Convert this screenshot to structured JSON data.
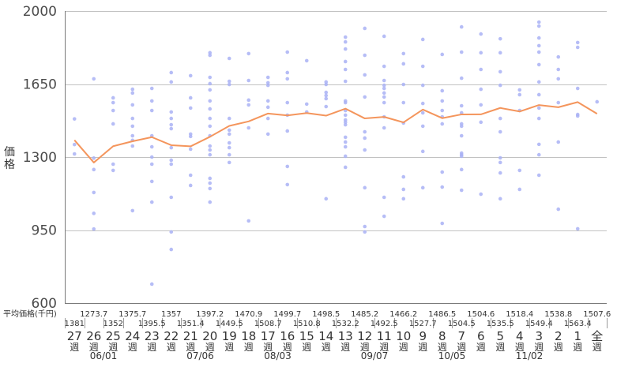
{
  "chart_data": {
    "type": "scatter",
    "categories": [
      "27週",
      "26週",
      "25週",
      "24週",
      "23週",
      "22週",
      "21週",
      "20週",
      "19週",
      "18週",
      "17週",
      "16週",
      "15週",
      "14週",
      "13週",
      "12週",
      "11週",
      "10週",
      "9週",
      "8週",
      "7週",
      "6週",
      "5週",
      "4週",
      "3週",
      "2週",
      "1週",
      "全週"
    ],
    "series": [
      {
        "type": "scatter",
        "values": [
          [
            1483,
            1360,
            1315
          ],
          [
            1675,
            1295,
            1240,
            1130,
            1030,
            955
          ],
          [
            1584,
            1561,
            1523,
            1459,
            1266,
            1236
          ],
          [
            1625,
            1607,
            1550,
            1485,
            1448,
            1402,
            1380,
            1353,
            1043
          ],
          [
            1629,
            1569,
            1523,
            1402,
            1349,
            1300,
            1266,
            1183,
            1084,
            691
          ],
          [
            1705,
            1660,
            1516,
            1485,
            1455,
            1436,
            1345,
            1285,
            1266,
            1107,
            941,
            857
          ],
          [
            1690,
            1584,
            1535,
            1410,
            1399,
            1338,
            1213,
            1164
          ],
          [
            1800,
            1788,
            1682,
            1652,
            1622,
            1569,
            1531,
            1485,
            1448,
            1402,
            1353,
            1334,
            1311,
            1198,
            1175,
            1149,
            1084
          ],
          [
            1773,
            1663,
            1648,
            1485,
            1429,
            1410,
            1368,
            1345,
            1311,
            1274
          ],
          [
            1796,
            1667,
            1573,
            1550,
            1440,
            994
          ],
          [
            1682,
            1656,
            1644,
            1569,
            1539,
            1485,
            1410
          ],
          [
            1803,
            1705,
            1675,
            1561,
            1501,
            1425,
            1255,
            1168
          ],
          [
            1762,
            1554,
            1516
          ],
          [
            1660,
            1648,
            1610,
            1595,
            1580,
            1542,
            1100
          ],
          [
            1875,
            1852,
            1818,
            1758,
            1720,
            1663,
            1569,
            1561,
            1523,
            1501,
            1478,
            1467,
            1455,
            1395,
            1372,
            1349,
            1304,
            1251
          ],
          [
            1917,
            1788,
            1694,
            1588,
            1421,
            1391,
            1334,
            1153,
            967,
            941
          ],
          [
            1879,
            1735,
            1667,
            1644,
            1629,
            1607,
            1588,
            1561,
            1493,
            1440,
            1107,
            1016
          ],
          [
            1796,
            1747,
            1648,
            1561,
            1463,
            1205,
            1145,
            1100
          ],
          [
            1864,
            1735,
            1644,
            1557,
            1512,
            1448,
            1327,
            1153
          ],
          [
            1792,
            1618,
            1569,
            1523,
            1493,
            1459,
            1228,
            1156,
            982
          ],
          [
            1924,
            1803,
            1678,
            1546,
            1512,
            1459,
            1448,
            1402,
            1319,
            1311,
            1304,
            1240,
            1141
          ],
          [
            1890,
            1800,
            1720,
            1625,
            1550,
            1467,
            1122
          ],
          [
            1867,
            1800,
            1709,
            1644,
            1485,
            1421,
            1296,
            1274,
            1224,
            1100
          ],
          [
            1622,
            1599,
            1523,
            1236,
            1145
          ],
          [
            1947,
            1928,
            1871,
            1834,
            1803,
            1743,
            1660,
            1599,
            1535,
            1485,
            1361,
            1311,
            1213
          ],
          [
            1780,
            1720,
            1675,
            1561,
            1372,
            1050
          ],
          [
            1849,
            1826,
            1629,
            1504,
            1497,
            956
          ],
          [
            1565
          ]
        ]
      },
      {
        "type": "line",
        "values": [
          1381,
          1273.7,
          1352,
          1375.7,
          1395.5,
          1357,
          1351.4,
          1397.2,
          1449.5,
          1470.9,
          1508.7,
          1499.7,
          1510.8,
          1498.5,
          1532.2,
          1485.2,
          1492.5,
          1466.2,
          1527.7,
          1486.5,
          1504.5,
          1504.6,
          1535.5,
          1518.4,
          1549.4,
          1538.8,
          1563.4,
          1507.6
        ]
      }
    ],
    "ylabel": "価格",
    "ylim": [
      600,
      2000
    ],
    "y_ticks": [
      600,
      950,
      1300,
      1650,
      2000
    ],
    "grid": true,
    "avg_row_label": "平均価格(千円)",
    "date_marks": [
      {
        "label": "06/01",
        "between_index": [
          1,
          2
        ]
      },
      {
        "label": "07/06",
        "between_index": [
          6,
          7
        ]
      },
      {
        "label": "08/03",
        "between_index": [
          10,
          11
        ]
      },
      {
        "label": "09/07",
        "between_index": [
          15,
          16
        ]
      },
      {
        "label": "10/05",
        "between_index": [
          19,
          20
        ]
      },
      {
        "label": "11/02",
        "between_index": [
          23,
          24
        ]
      }
    ],
    "colors": {
      "line": "#f4955c",
      "points": "#a9b2f5",
      "grid": "#c2c2c2",
      "axis": "#7a7a7a",
      "text": "#333333"
    }
  }
}
